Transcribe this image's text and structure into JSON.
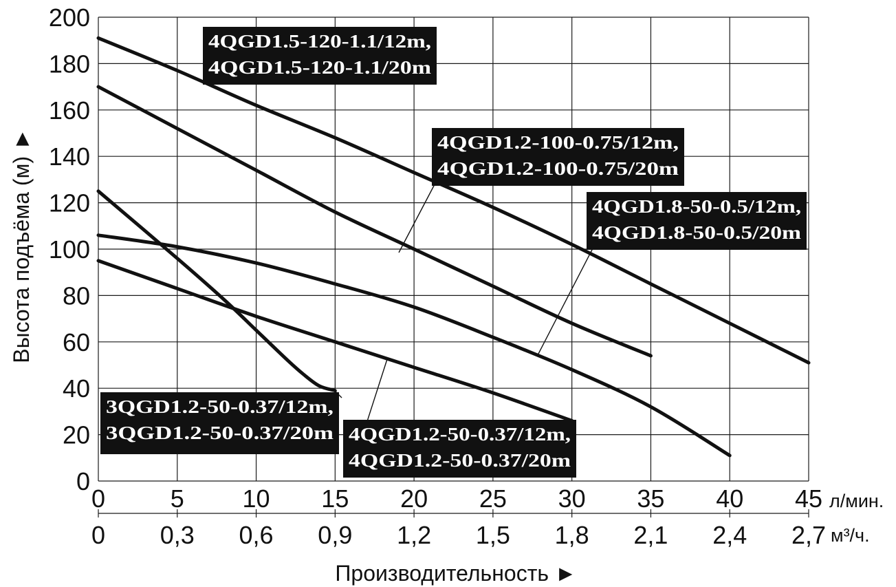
{
  "chart_data": {
    "type": "line",
    "ylabel": "Высота подъёма (м) ►",
    "xlabel": "Производительность ►",
    "xunit_primary": "л/мин.",
    "xunit_secondary": "м³/ч.",
    "xlim": [
      0,
      45
    ],
    "ylim": [
      0,
      200
    ],
    "yticks": [
      "0",
      "20",
      "40",
      "60",
      "80",
      "100",
      "120",
      "140",
      "160",
      "180",
      "200"
    ],
    "xticks_primary": [
      "0",
      "5",
      "10",
      "15",
      "20",
      "25",
      "30",
      "35",
      "40",
      "45"
    ],
    "xticks_secondary": [
      "0",
      "0,3",
      "0,6",
      "0,9",
      "1,2",
      "1,5",
      "1,8",
      "2,1",
      "2,4",
      "2,7"
    ],
    "grid": true,
    "series": [
      {
        "name": "4QGD1.5-120-1.1/12m, 4QGD1.5-120-1.1/20m",
        "x": [
          0,
          5,
          10,
          15,
          20,
          25,
          30,
          35,
          40,
          45
        ],
        "y": [
          191,
          177,
          162,
          148,
          133,
          118,
          102,
          85,
          68,
          51
        ]
      },
      {
        "name": "4QGD1.2-100-0.75/12m, 4QGD1.2-100-0.75/20m",
        "x": [
          0,
          5,
          10,
          15,
          20,
          25,
          30,
          35
        ],
        "y": [
          170,
          152,
          134,
          116,
          100,
          84,
          68,
          54
        ]
      },
      {
        "name": "4QGD1.8-50-0.5/12m, 4QGD1.8-50-0.5/20m",
        "x": [
          0,
          5,
          10,
          15,
          20,
          25,
          30,
          35,
          40
        ],
        "y": [
          106,
          101,
          94,
          85,
          75,
          62,
          48,
          32,
          11
        ]
      },
      {
        "name": "4QGD1.2-50-0.37/12m, 4QGD1.2-50-0.37/20m",
        "x": [
          0,
          5,
          10,
          15,
          20,
          25,
          30
        ],
        "y": [
          95,
          83,
          71,
          60,
          49,
          38,
          26
        ]
      },
      {
        "name": "3QGD1.2-50-0.37/12m, 3QGD1.2-50-0.37/20m",
        "x": [
          0,
          5,
          8,
          10,
          12,
          13,
          14,
          15
        ],
        "y": [
          125,
          96,
          78,
          65,
          52,
          46,
          41,
          39
        ]
      }
    ],
    "labels": [
      {
        "lines": [
          "4QGD1.5-120-1.1/12m,",
          "4QGD1.5-120-1.1/20m"
        ]
      },
      {
        "lines": [
          "4QGD1.2-100-0.75/12m,",
          "4QGD1.2-100-0.75/20m"
        ]
      },
      {
        "lines": [
          "4QGD1.8-50-0.5/12m,",
          "4QGD1.8-50-0.5/20m"
        ]
      },
      {
        "lines": [
          "3QGD1.2-50-0.37/12m,",
          "3QGD1.2-50-0.37/20m"
        ]
      },
      {
        "lines": [
          "4QGD1.2-50-0.37/12m,",
          "4QGD1.2-50-0.37/20m"
        ]
      }
    ]
  }
}
